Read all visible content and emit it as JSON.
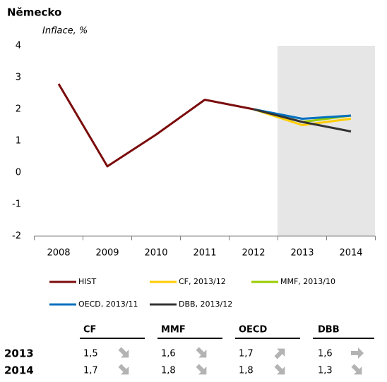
{
  "chart_data": {
    "type": "line",
    "title": "Německo",
    "subtitle": "Inflace, %",
    "categories": [
      "2008",
      "2009",
      "2010",
      "2011",
      "2012",
      "2013",
      "2014"
    ],
    "series": [
      {
        "name": "HIST",
        "color": "#7b0c0c",
        "values": [
          2.8,
          0.2,
          1.2,
          2.3,
          2.0,
          null,
          null
        ]
      },
      {
        "name": "CF, 2013/12",
        "color": "#ffcc00",
        "values": [
          null,
          null,
          null,
          null,
          2.0,
          1.5,
          1.7
        ]
      },
      {
        "name": "MMF, 2013/10",
        "color": "#99cc00",
        "values": [
          null,
          null,
          null,
          null,
          2.0,
          1.6,
          1.8
        ]
      },
      {
        "name": "OECD, 2013/11",
        "color": "#0070c0",
        "values": [
          null,
          null,
          null,
          null,
          2.0,
          1.7,
          1.8
        ]
      },
      {
        "name": "DBB, 2013/12",
        "color": "#333333",
        "values": [
          null,
          null,
          null,
          null,
          2.0,
          1.6,
          1.3
        ]
      }
    ],
    "ylim": [
      -2,
      4
    ],
    "yticks": [
      -2,
      -1,
      0,
      1,
      2,
      3,
      4
    ],
    "grid": false
  },
  "table": {
    "columns": [
      "CF",
      "MMF",
      "OECD",
      "DBB"
    ],
    "rows": [
      [
        "2013",
        "1,5",
        "1,6",
        "1,7",
        "1,6"
      ],
      [
        "2014",
        "1,7",
        "1,8",
        "1,8",
        "1,3"
      ]
    ]
  }
}
